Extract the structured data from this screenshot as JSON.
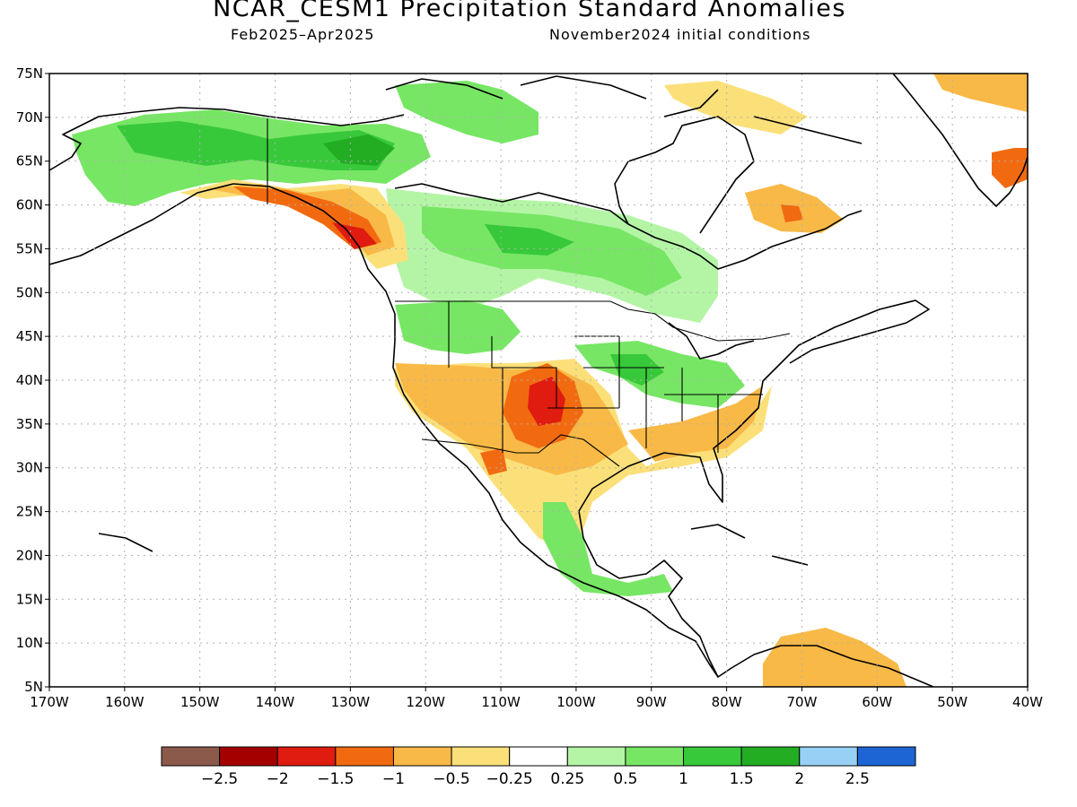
{
  "title": "NCAR_CESM1 Precipitation Standard Anomalies",
  "period": "Feb2025–Apr2025",
  "initial_conditions": "November2024 initial conditions",
  "map": {
    "projection": "cylindrical equidistant",
    "lon_range": [
      -170,
      -40
    ],
    "lat_range": [
      5,
      75
    ],
    "lat_labels": [
      "75N",
      "70N",
      "65N",
      "60N",
      "55N",
      "50N",
      "45N",
      "40N",
      "35N",
      "30N",
      "25N",
      "20N",
      "15N",
      "10N",
      "5N"
    ],
    "lon_labels": [
      "170W",
      "160W",
      "150W",
      "140W",
      "130W",
      "120W",
      "110W",
      "100W",
      "90W",
      "80W",
      "70W",
      "60W",
      "50W",
      "40W"
    ],
    "gridlines": "dotted"
  },
  "legend": {
    "labels": [
      "−2.5",
      "−2",
      "−1.5",
      "−1",
      "−0.5",
      "−0.25",
      "0.25",
      "0.5",
      "1",
      "1.5",
      "2",
      "2.5"
    ],
    "colors": [
      "#8b5a4a",
      "#a50000",
      "#e01b0f",
      "#f26a10",
      "#f9b946",
      "#fbe07a",
      "#ffffff",
      "#b3f5a5",
      "#77e664",
      "#38c93a",
      "#23ad23",
      "#96d0f5",
      "#1d64d5"
    ]
  }
}
